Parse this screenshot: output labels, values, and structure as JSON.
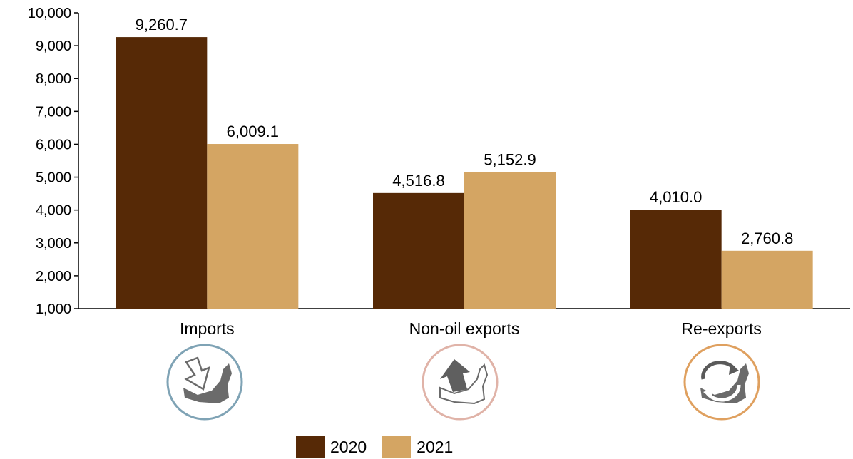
{
  "chart_data": {
    "type": "bar",
    "categories": [
      "Imports",
      "Non-oil exports",
      "Re-exports"
    ],
    "series": [
      {
        "name": "2020",
        "color": "#562906",
        "values": [
          9260.7,
          4516.8,
          4010.0
        ],
        "labels": [
          "9,260.7",
          "4,516.8",
          "4,010.0"
        ]
      },
      {
        "name": "2021",
        "color": "#D4A563",
        "values": [
          6009.1,
          5152.9,
          2760.8
        ],
        "labels": [
          "6,009.1",
          "5,152.9",
          "2,760.8"
        ]
      }
    ],
    "ylim": [
      1000,
      10000
    ],
    "yticks": [
      "1,000",
      "2,000",
      "3,000",
      "4,000",
      "5,000",
      "6,000",
      "7,000",
      "8,000",
      "9,000",
      "10,000"
    ],
    "ytick_values": [
      1000,
      2000,
      3000,
      4000,
      5000,
      6000,
      7000,
      8000,
      9000,
      10000
    ],
    "legend_position": "bottom",
    "grid": false
  },
  "category_icons": [
    {
      "name": "imports-icon",
      "ring_color": "#7FA3B5"
    },
    {
      "name": "non-oil-exports-icon",
      "ring_color": "#E0B3A8"
    },
    {
      "name": "re-exports-icon",
      "ring_color": "#DFA05F"
    }
  ]
}
